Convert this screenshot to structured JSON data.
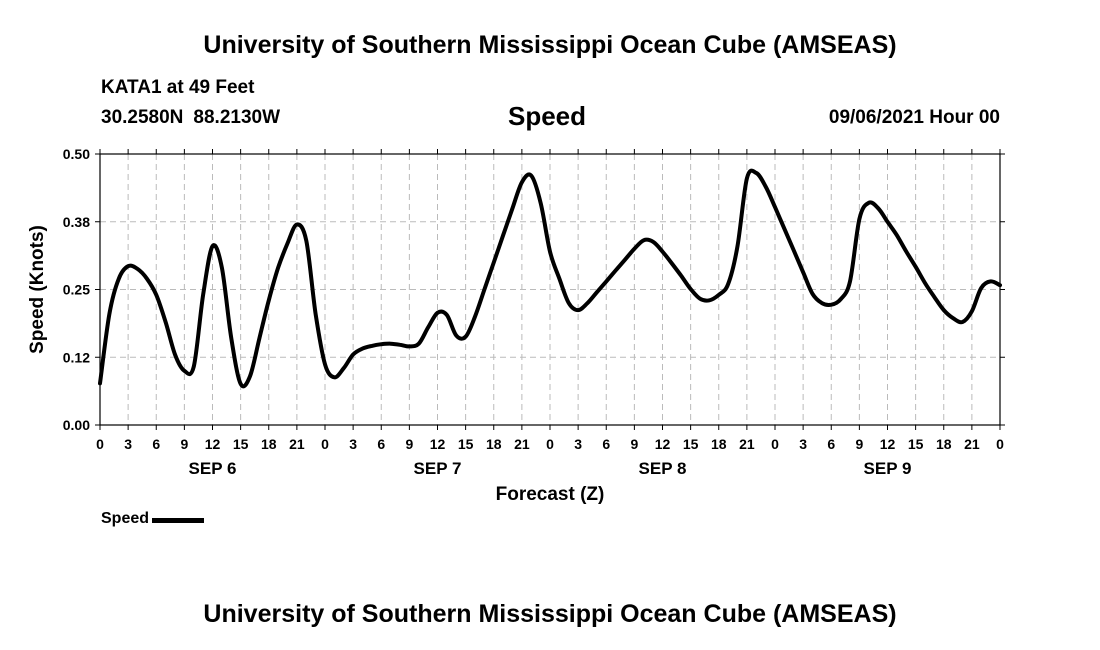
{
  "header": {
    "title": "University of Southern Mississippi Ocean Cube (AMSEAS)",
    "station": "KATA1 at 49 Feet",
    "lat": "30.2580N",
    "lon": "88.2130W",
    "chart_title": "Speed",
    "date": "09/06/2021 Hour 00"
  },
  "footer": {
    "title": "University of Southern Mississippi Ocean Cube (AMSEAS)"
  },
  "legend": {
    "label": "Speed"
  },
  "chart_data": {
    "type": "line",
    "title": "Speed",
    "xlabel": "Forecast (Z)",
    "ylabel": "Speed (Knots)",
    "ylim": [
      0,
      0.5
    ],
    "xlim": [
      0,
      96
    ],
    "y_ticks": [
      0,
      0.125,
      0.25,
      0.375,
      0.5
    ],
    "y_tick_labels": [
      "0.00",
      "0.12",
      "0.25",
      "0.38",
      "0.50"
    ],
    "x_ticks": [
      0,
      3,
      6,
      9,
      12,
      15,
      18,
      21,
      24,
      27,
      30,
      33,
      36,
      39,
      42,
      45,
      48,
      51,
      54,
      57,
      60,
      63,
      66,
      69,
      72,
      75,
      78,
      81,
      84,
      87,
      90,
      93,
      96
    ],
    "x_tick_labels": [
      "0",
      "3",
      "6",
      "9",
      "12",
      "15",
      "18",
      "21",
      "0",
      "3",
      "6",
      "9",
      "12",
      "15",
      "18",
      "21",
      "0",
      "3",
      "6",
      "9",
      "12",
      "15",
      "18",
      "21",
      "0",
      "3",
      "6",
      "9",
      "12",
      "15",
      "18",
      "21",
      "0"
    ],
    "day_labels": [
      {
        "label": "SEP 6",
        "hour": 12
      },
      {
        "label": "SEP 7",
        "hour": 36
      },
      {
        "label": "SEP 8",
        "hour": 60
      },
      {
        "label": "SEP 9",
        "hour": 84
      }
    ],
    "grid": true,
    "series": [
      {
        "name": "Speed",
        "x": [
          0,
          1,
          2,
          3,
          4,
          5,
          6,
          7,
          8,
          9,
          10,
          11,
          12,
          13,
          14,
          15,
          16,
          17,
          18,
          19,
          20,
          21,
          22,
          23,
          24,
          25,
          26,
          27,
          28,
          29,
          30,
          31,
          32,
          33,
          34,
          35,
          36,
          37,
          38,
          39,
          40,
          41,
          42,
          43,
          44,
          45,
          46,
          47,
          48,
          49,
          50,
          51,
          52,
          53,
          54,
          55,
          56,
          57,
          58,
          59,
          60,
          61,
          62,
          63,
          64,
          65,
          66,
          67,
          68,
          69,
          70,
          71,
          72,
          73,
          74,
          75,
          76,
          77,
          78,
          79,
          80,
          81,
          82,
          83,
          84,
          85,
          86,
          87,
          88,
          89,
          90,
          91,
          92,
          93,
          94,
          95,
          96
        ],
        "values": [
          0.077,
          0.205,
          0.27,
          0.293,
          0.288,
          0.27,
          0.24,
          0.19,
          0.13,
          0.1,
          0.108,
          0.24,
          0.33,
          0.29,
          0.16,
          0.076,
          0.09,
          0.16,
          0.23,
          0.29,
          0.335,
          0.37,
          0.34,
          0.205,
          0.112,
          0.088,
          0.105,
          0.13,
          0.141,
          0.146,
          0.149,
          0.15,
          0.148,
          0.145,
          0.15,
          0.18,
          0.207,
          0.203,
          0.165,
          0.163,
          0.2,
          0.25,
          0.3,
          0.35,
          0.4,
          0.448,
          0.46,
          0.41,
          0.32,
          0.27,
          0.225,
          0.212,
          0.225,
          0.245,
          0.265,
          0.285,
          0.305,
          0.325,
          0.341,
          0.338,
          0.32,
          0.298,
          0.275,
          0.251,
          0.233,
          0.23,
          0.24,
          0.26,
          0.33,
          0.455,
          0.465,
          0.44,
          0.402,
          0.362,
          0.322,
          0.282,
          0.242,
          0.225,
          0.222,
          0.232,
          0.265,
          0.38,
          0.41,
          0.4,
          0.375,
          0.35,
          0.32,
          0.292,
          0.262,
          0.236,
          0.212,
          0.197,
          0.19,
          0.21,
          0.253,
          0.265,
          0.258
        ]
      }
    ]
  }
}
